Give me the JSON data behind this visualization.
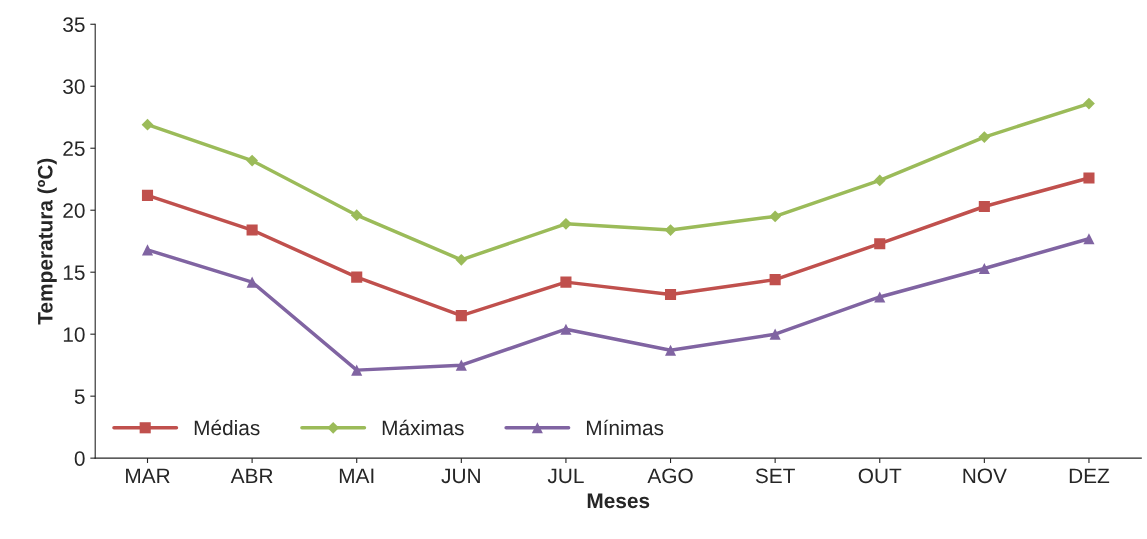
{
  "chart_data": {
    "type": "line",
    "xlabel": "Meses",
    "ylabel": "Temperatura (ºC)",
    "categories": [
      "MAR",
      "ABR",
      "MAI",
      "JUN",
      "JUL",
      "AGO",
      "SET",
      "OUT",
      "NOV",
      "DEZ"
    ],
    "series": [
      {
        "name": "Médias",
        "color": "#c0504d",
        "marker": "square",
        "values": [
          21.2,
          18.4,
          14.6,
          11.5,
          14.2,
          13.2,
          14.4,
          17.3,
          20.3,
          22.6
        ]
      },
      {
        "name": "Máximas",
        "color": "#9bbb59",
        "marker": "diamond",
        "values": [
          26.9,
          24.0,
          19.6,
          16.0,
          18.9,
          18.4,
          19.5,
          22.4,
          25.9,
          28.6
        ]
      },
      {
        "name": "Mínimas",
        "color": "#8064a2",
        "marker": "triangle",
        "values": [
          16.8,
          14.2,
          7.1,
          7.5,
          10.4,
          8.7,
          10.0,
          13.0,
          15.3,
          17.7
        ]
      }
    ],
    "ylim": [
      0,
      35
    ],
    "yticks": [
      0,
      5,
      10,
      15,
      20,
      25,
      30,
      35
    ],
    "grid": false,
    "legend": "bottom left",
    "line_style": "solid"
  }
}
